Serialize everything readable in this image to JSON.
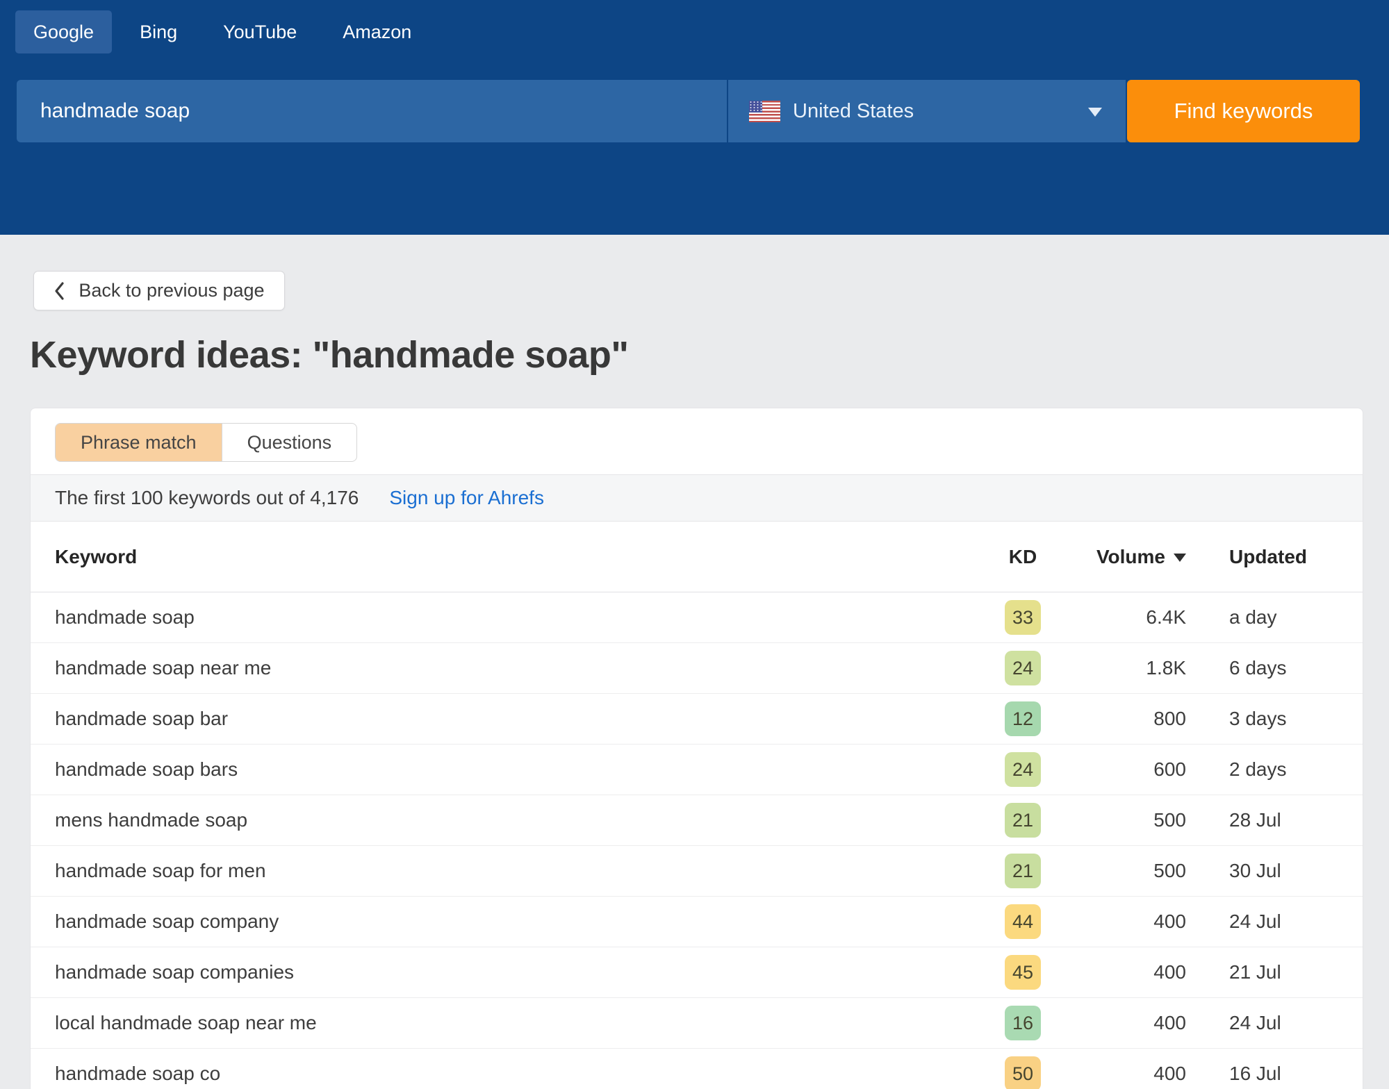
{
  "header": {
    "engines": [
      {
        "label": "Google",
        "selected": true
      },
      {
        "label": "Bing",
        "selected": false
      },
      {
        "label": "YouTube",
        "selected": false
      },
      {
        "label": "Amazon",
        "selected": false
      }
    ],
    "search_value": "handmade soap",
    "country": "United States",
    "find_button": "Find keywords"
  },
  "page": {
    "back_button": "Back to previous page",
    "title": "Keyword ideas: \"handmade soap\""
  },
  "tabs": {
    "phrase_match": "Phrase match",
    "questions": "Questions"
  },
  "summary": {
    "text": "The first 100 keywords out of 4,176",
    "link": "Sign up for Ahrefs"
  },
  "table": {
    "headers": {
      "keyword": "Keyword",
      "kd": "KD",
      "volume": "Volume",
      "updated": "Updated"
    },
    "rows": [
      {
        "keyword": "handmade soap",
        "kd": "33",
        "kd_color": "#e5e08c",
        "volume": "6.4K",
        "updated": "a day"
      },
      {
        "keyword": "handmade soap near me",
        "kd": "24",
        "kd_color": "#cfe1a0",
        "volume": "1.8K",
        "updated": "6 days"
      },
      {
        "keyword": "handmade soap bar",
        "kd": "12",
        "kd_color": "#a6d8ae",
        "volume": "800",
        "updated": "3 days"
      },
      {
        "keyword": "handmade soap bars",
        "kd": "24",
        "kd_color": "#cfe1a0",
        "volume": "600",
        "updated": "2 days"
      },
      {
        "keyword": "mens handmade soap",
        "kd": "21",
        "kd_color": "#c8de9f",
        "volume": "500",
        "updated": "28 Jul"
      },
      {
        "keyword": "handmade soap for men",
        "kd": "21",
        "kd_color": "#c8de9f",
        "volume": "500",
        "updated": "30 Jul"
      },
      {
        "keyword": "handmade soap company",
        "kd": "44",
        "kd_color": "#fbd97f",
        "volume": "400",
        "updated": "24 Jul"
      },
      {
        "keyword": "handmade soap companies",
        "kd": "45",
        "kd_color": "#fbd97f",
        "volume": "400",
        "updated": "21 Jul"
      },
      {
        "keyword": "local handmade soap near me",
        "kd": "16",
        "kd_color": "#a9dab2",
        "volume": "400",
        "updated": "24 Jul"
      },
      {
        "keyword": "handmade soap co",
        "kd": "50",
        "kd_color": "#f9d184",
        "volume": "400",
        "updated": "16 Jul"
      }
    ]
  },
  "colors": {
    "header_bg": "#0d4585",
    "field_bg": "#2d66a4",
    "accent_orange": "#fb8e0b",
    "link_blue": "#1b6fd2",
    "tab_selected_bg": "#f9d0a0"
  }
}
